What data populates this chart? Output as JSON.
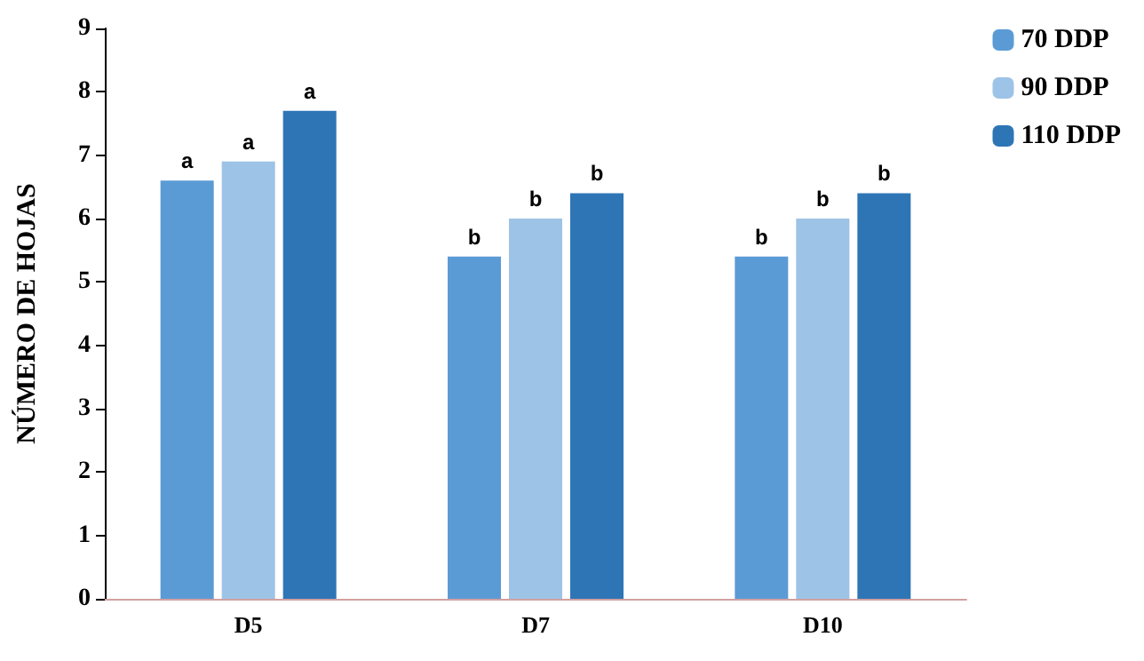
{
  "chart_data": {
    "type": "bar",
    "ylabel": "NÚMERO DE HOJAS",
    "categories": [
      "D5",
      "D7",
      "D10"
    ],
    "series": [
      {
        "name": "70 DDP",
        "color": "#5b9bd5",
        "values": [
          6.6,
          5.4,
          5.4
        ],
        "value_labels": [
          "a",
          "b",
          "b"
        ]
      },
      {
        "name": "90 DDP",
        "color": "#9dc3e6",
        "values": [
          6.9,
          6.0,
          6.0
        ],
        "value_labels": [
          "a",
          "b",
          "b"
        ]
      },
      {
        "name": "110 DDP",
        "color": "#2e75b6",
        "values": [
          7.7,
          6.4,
          6.4
        ],
        "value_labels": [
          "a",
          "b",
          "b"
        ]
      }
    ],
    "ylim": [
      0,
      9
    ],
    "yticks": [
      0,
      1,
      2,
      3,
      4,
      5,
      6,
      7,
      8,
      9
    ],
    "grid": false,
    "legend": "top right"
  }
}
